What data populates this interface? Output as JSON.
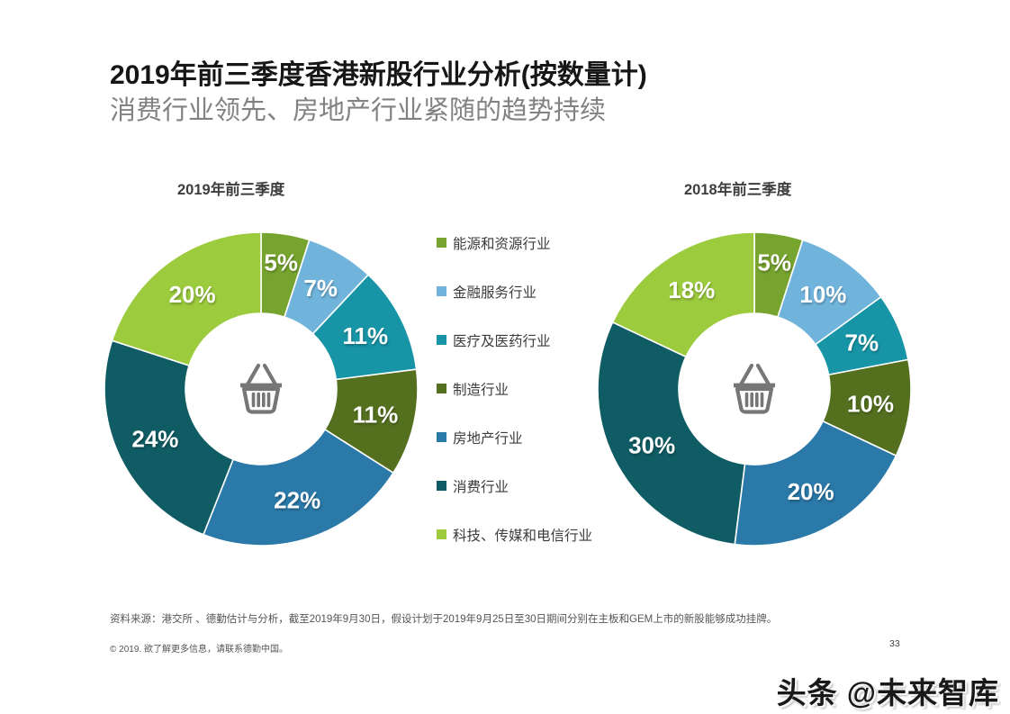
{
  "header": {
    "title": "2019年前三季度香港新股行业分析(按数量计)",
    "subtitle": "消费行业领先、房地产行业紧随的趋势持续"
  },
  "legend": {
    "items": [
      {
        "label": "能源和资源行业",
        "color": "#77A42F"
      },
      {
        "label": "金融服务行业",
        "color": "#70B4DC"
      },
      {
        "label": "医疗及医药行业",
        "color": "#1795A6"
      },
      {
        "label": "制造行业",
        "color": "#54701F"
      },
      {
        "label": "房地产行业",
        "color": "#2A79A9"
      },
      {
        "label": "消费行业",
        "color": "#105C64"
      },
      {
        "label": "科技、传媒和电信行业",
        "color": "#9CCB3D"
      }
    ]
  },
  "chart_data": [
    {
      "type": "pie",
      "subtype": "donut",
      "title": "2019年前三季度",
      "categories": [
        "能源和资源行业",
        "金融服务行业",
        "医疗及医药行业",
        "制造行业",
        "房地产行业",
        "消费行业",
        "科技、传媒和电信行业"
      ],
      "values": [
        5,
        7,
        11,
        11,
        22,
        24,
        20
      ],
      "unit": "%",
      "start_angle_deg": 0,
      "direction": "clockwise",
      "label_color": "#ffffff",
      "center_icon": "shopping-basket"
    },
    {
      "type": "pie",
      "subtype": "donut",
      "title": "2018年前三季度",
      "categories": [
        "能源和资源行业",
        "金融服务行业",
        "医疗及医药行业",
        "制造行业",
        "房地产行业",
        "消费行业",
        "科技、传媒和电信行业"
      ],
      "values": [
        5,
        10,
        7,
        10,
        20,
        30,
        18
      ],
      "unit": "%",
      "start_angle_deg": 0,
      "direction": "clockwise",
      "label_color": "#ffffff",
      "center_icon": "shopping-basket"
    }
  ],
  "source_note": "资料来源：港交所 、德勤估计与分析，截至2019年9月30日，假设计划于2019年9月25日至30日期间分别在主板和GEM上市的新股能够成功挂牌。",
  "footer": {
    "copyright": "© 2019. 欲了解更多信息，请联系德勤中国。",
    "page_number": "33"
  },
  "watermark": "头条 @未来智库"
}
